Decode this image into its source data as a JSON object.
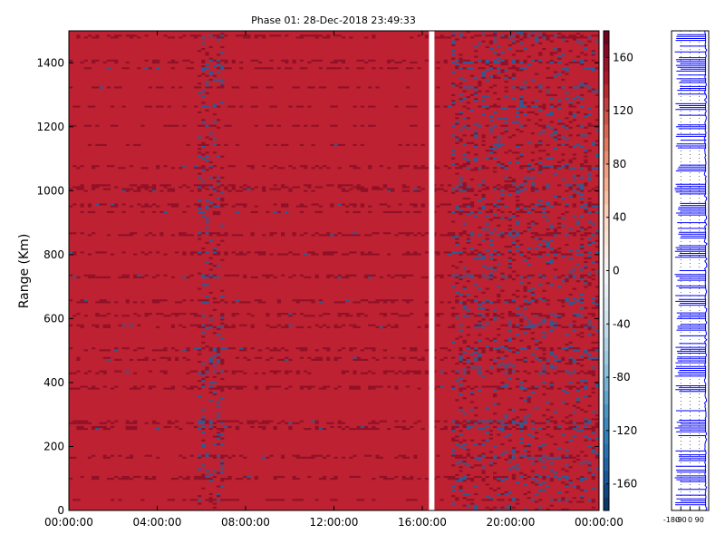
{
  "chart_data": [
    {
      "type": "heatmap",
      "title": "Phase 01: 28-Dec-2018 23:49:33",
      "ylabel": "Range (Km)",
      "xlabel": "",
      "x_range": [
        "00:00:00",
        "24:00:00"
      ],
      "xticks": [
        "00:00:00",
        "04:00:00",
        "08:00:00",
        "12:00:00",
        "16:00:00",
        "20:00:00",
        "00:00:00"
      ],
      "ylim": [
        0,
        1500
      ],
      "yticks": [
        0,
        200,
        400,
        600,
        800,
        1000,
        1200,
        1400
      ],
      "colorbar": {
        "range": [
          -180,
          180
        ],
        "ticks": [
          -160,
          -120,
          -80,
          -40,
          0,
          40,
          80,
          120,
          160
        ],
        "colormap": [
          "#053061",
          "#2166ac",
          "#4393c3",
          "#92c5de",
          "#d1e5f0",
          "#f7f7f7",
          "#fddbc7",
          "#f4a582",
          "#d6604d",
          "#b2182b",
          "#67001f"
        ]
      },
      "dominant_value": 150,
      "colors": {
        "background_cell": "#be2131",
        "dark_cell": "#8f1127",
        "blue_cell": "#2c5b96",
        "gap": "#ffffff"
      },
      "data_gap_hours": [
        16.3,
        16.55
      ],
      "vertical_bands_hours": [
        [
          5.75,
          7.0
        ],
        [
          17.2,
          24.0
        ]
      ],
      "horizontal_streaks_km": [
        30,
        100,
        165,
        255,
        275,
        380,
        430,
        470,
        500,
        575,
        610,
        650,
        730,
        800,
        860,
        930,
        950,
        1000,
        1010,
        1070,
        1140,
        1200,
        1260,
        1320,
        1380,
        1400,
        1480
      ]
    },
    {
      "type": "line",
      "title": "",
      "xticks": [
        -180,
        -90,
        0,
        90
      ],
      "xlim": [
        -180,
        180
      ],
      "ylim": [
        0,
        1500
      ],
      "series_color": "#0000ff"
    }
  ]
}
